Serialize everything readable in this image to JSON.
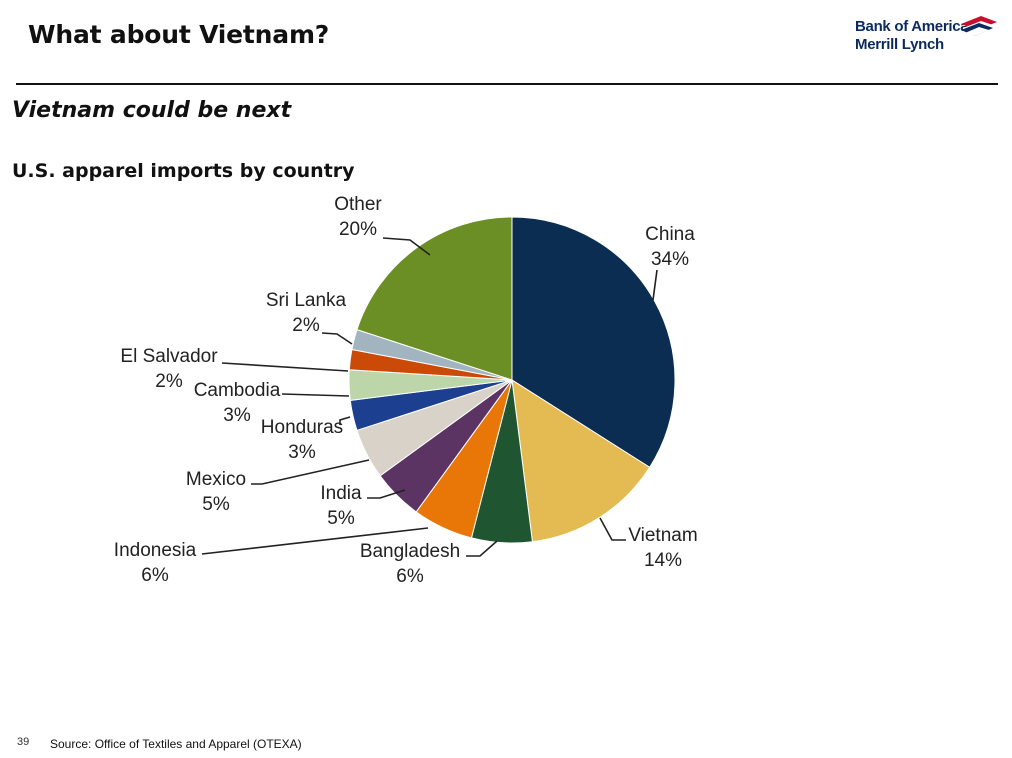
{
  "header": {
    "title": "What about Vietnam?",
    "logo_line1": "Bank of America",
    "logo_line2": "Merrill Lynch"
  },
  "subtitle": "Vietnam could be next",
  "chart_title": "U.S. apparel imports by country",
  "chart_data": {
    "type": "pie",
    "title": "U.S. apparel imports by country",
    "slices": [
      {
        "label": "China",
        "value": 34,
        "display": "34%",
        "color": "#0c2d52"
      },
      {
        "label": "Vietnam",
        "value": 14,
        "display": "14%",
        "color": "#e3bb52"
      },
      {
        "label": "Bangladesh",
        "value": 6,
        "display": "6%",
        "color": "#1f5631"
      },
      {
        "label": "Indonesia",
        "value": 6,
        "display": "6%",
        "color": "#e87708"
      },
      {
        "label": "India",
        "value": 5,
        "display": "5%",
        "color": "#5c3463"
      },
      {
        "label": "Mexico",
        "value": 5,
        "display": "5%",
        "color": "#d8d2c9"
      },
      {
        "label": "Honduras",
        "value": 3,
        "display": "3%",
        "color": "#1c3f8f"
      },
      {
        "label": "Cambodia",
        "value": 3,
        "display": "3%",
        "color": "#bcd6a9"
      },
      {
        "label": "El Salvador",
        "value": 2,
        "display": "2%",
        "color": "#cc4a07"
      },
      {
        "label": "Sri Lanka",
        "value": 2,
        "display": "2%",
        "color": "#a3b4c1"
      },
      {
        "label": "Other",
        "value": 20,
        "display": "20%",
        "color": "#6b8f24"
      }
    ]
  },
  "footer": {
    "page_number": "39",
    "source": "Source: Office of Textiles and Apparel (OTEXA)"
  }
}
